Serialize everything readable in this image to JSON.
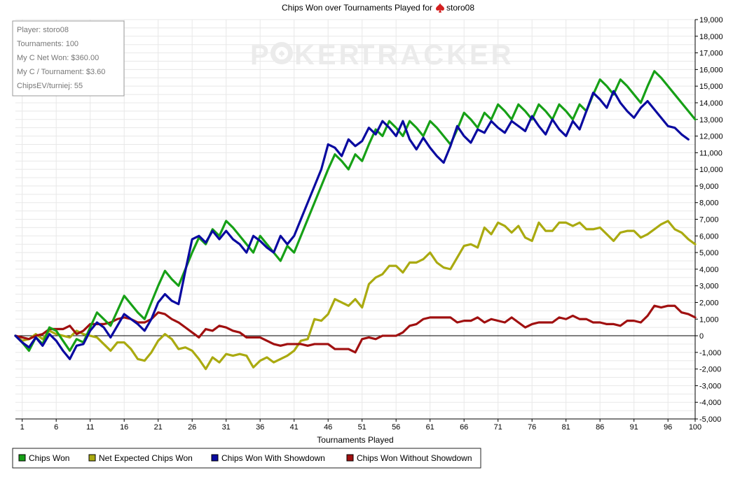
{
  "chart_data": {
    "type": "line",
    "title_prefix": "Chips Won over Tournaments Played for",
    "player_name": "storo08",
    "xlabel": "Tournaments Played",
    "ylabel": "",
    "xlim": [
      0,
      100
    ],
    "ylim": [
      -5000,
      19000
    ],
    "x_ticks": [
      1,
      6,
      11,
      16,
      21,
      26,
      31,
      36,
      41,
      46,
      51,
      56,
      61,
      66,
      71,
      76,
      81,
      86,
      91,
      96,
      100
    ],
    "y_ticks": [
      -5000,
      -4000,
      -3000,
      -2000,
      -1000,
      0,
      1000,
      2000,
      3000,
      4000,
      5000,
      6000,
      7000,
      8000,
      9000,
      10000,
      11000,
      12000,
      13000,
      14000,
      15000,
      16000,
      17000,
      18000,
      19000
    ],
    "y_tick_labels": [
      "-5,000",
      "-4,000",
      "-3,000",
      "-2,000",
      "-1,000",
      "0",
      "1,000",
      "2,000",
      "3,000",
      "4,000",
      "5,000",
      "6,000",
      "7,000",
      "8,000",
      "9,000",
      "10,000",
      "11,000",
      "12,000",
      "13,000",
      "14,000",
      "15,000",
      "16,000",
      "17,000",
      "18,000",
      "19,000"
    ],
    "grid": true,
    "legend_position": "bottom-left",
    "series": [
      {
        "name": "Chips Won",
        "color": "#16a016",
        "values": [
          0,
          -400,
          -900,
          -100,
          -500,
          500,
          300,
          -300,
          -900,
          -200,
          -400,
          500,
          1400,
          1000,
          600,
          1500,
          2400,
          1900,
          1400,
          1000,
          2000,
          3000,
          3900,
          3400,
          3000,
          4000,
          5000,
          5900,
          5500,
          6400,
          6000,
          6900,
          6500,
          6000,
          5500,
          5000,
          6000,
          5500,
          5000,
          4500,
          5400,
          5000,
          6000,
          7000,
          8000,
          9000,
          10000,
          10900,
          10500,
          10000,
          10900,
          10500,
          11500,
          12400,
          12000,
          12900,
          12500,
          12000,
          12900,
          12500,
          12000,
          12900,
          12500,
          12000,
          11500,
          12400,
          13400,
          13000,
          12500,
          13400,
          13000,
          13900,
          13500,
          13000,
          13900,
          13500,
          13000,
          13900,
          13500,
          13000,
          13900,
          13500,
          13000,
          13900,
          13500,
          14500,
          15400,
          15000,
          14500,
          15400,
          15000,
          14500,
          14000,
          15000,
          15900,
          15500,
          15000,
          14500,
          14000,
          13500,
          13000
        ]
      },
      {
        "name": "Net Expected Chips Won",
        "color": "#aaaa10",
        "values": [
          0,
          -300,
          -200,
          100,
          -200,
          300,
          100,
          0,
          -100,
          300,
          100,
          0,
          -100,
          -500,
          -900,
          -400,
          -400,
          -800,
          -1400,
          -1500,
          -1000,
          -300,
          100,
          -200,
          -800,
          -700,
          -900,
          -1400,
          -2000,
          -1300,
          -1600,
          -1100,
          -1200,
          -1100,
          -1200,
          -1900,
          -1500,
          -1300,
          -1600,
          -1400,
          -1200,
          -900,
          -300,
          -200,
          1000,
          900,
          1300,
          2200,
          2000,
          1800,
          2200,
          1700,
          3100,
          3500,
          3700,
          4200,
          4200,
          3800,
          4400,
          4400,
          4600,
          5000,
          4400,
          4100,
          4000,
          4700,
          5400,
          5500,
          5300,
          6500,
          6100,
          6800,
          6600,
          6200,
          6600,
          5900,
          5700,
          6800,
          6300,
          6300,
          6800,
          6800,
          6600,
          6800,
          6400,
          6400,
          6500,
          6100,
          5700,
          6200,
          6300,
          6300,
          5900,
          6100,
          6400,
          6700,
          6900,
          6400,
          6200,
          5800,
          5500
        ]
      },
      {
        "name": "Chips Won With Showdown",
        "color": "#0a0aa0",
        "values": [
          0,
          -400,
          -700,
          -100,
          -600,
          100,
          -300,
          -900,
          -1400,
          -600,
          -500,
          300,
          800,
          500,
          -100,
          600,
          1300,
          1000,
          700,
          300,
          1000,
          2000,
          2500,
          2100,
          1900,
          3900,
          5800,
          6000,
          5600,
          6300,
          5800,
          6300,
          5800,
          5500,
          5000,
          6000,
          5700,
          5300,
          5000,
          6000,
          5500,
          6000,
          7000,
          8000,
          9000,
          10000,
          11500,
          11300,
          10800,
          11800,
          11400,
          11700,
          12500,
          12100,
          12900,
          12500,
          12000,
          12900,
          11800,
          11200,
          11900,
          11300,
          10800,
          10400,
          11400,
          12600,
          12000,
          11600,
          12400,
          12200,
          12900,
          12500,
          12200,
          12900,
          12600,
          12300,
          13200,
          12600,
          12100,
          13000,
          12400,
          12000,
          12900,
          12400,
          13500,
          14600,
          14200,
          13700,
          14700,
          14000,
          13500,
          13100,
          13700,
          14100,
          13600,
          13100,
          12600,
          12500,
          12100,
          11800
        ]
      },
      {
        "name": "Chips Won Without Showdown",
        "color": "#a01010",
        "values": [
          0,
          -100,
          -200,
          0,
          100,
          400,
          400,
          400,
          600,
          100,
          300,
          700,
          700,
          700,
          800,
          1000,
          1100,
          1000,
          800,
          800,
          1000,
          1400,
          1300,
          1000,
          800,
          500,
          200,
          -100,
          400,
          300,
          600,
          500,
          300,
          200,
          -100,
          -100,
          -100,
          -300,
          -500,
          -600,
          -500,
          -500,
          -500,
          -600,
          -500,
          -500,
          -500,
          -800,
          -800,
          -800,
          -1000,
          -200,
          -100,
          -200,
          0,
          0,
          0,
          200,
          600,
          700,
          1000,
          1100,
          1100,
          1100,
          1100,
          800,
          900,
          900,
          1100,
          800,
          1000,
          900,
          800,
          1100,
          800,
          500,
          700,
          800,
          800,
          800,
          1100,
          1000,
          1200,
          1000,
          1000,
          800,
          800,
          700,
          700,
          600,
          900,
          900,
          800,
          1200,
          1800,
          1700,
          1800,
          1800,
          1400,
          1300,
          1100
        ]
      }
    ]
  },
  "info_box": {
    "lines": [
      "Player: storo08",
      "Tournaments: 100",
      "My C Net Won: $360.00",
      "My C / Tournament: $3.60",
      "ChipsEV/turniej: 55"
    ]
  },
  "watermark": {
    "text_left": "P",
    "text_mid": "KER",
    "text_right": "TRACKER",
    "color": "#ebebeb"
  },
  "colors": {
    "axis": "#000000",
    "grid": "#e8e8e8",
    "zero_line": "#000000",
    "info_border": "#999999",
    "legend_border": "#222222",
    "spade": "#d42020"
  },
  "icons": {
    "title_suit": "spade-icon"
  }
}
